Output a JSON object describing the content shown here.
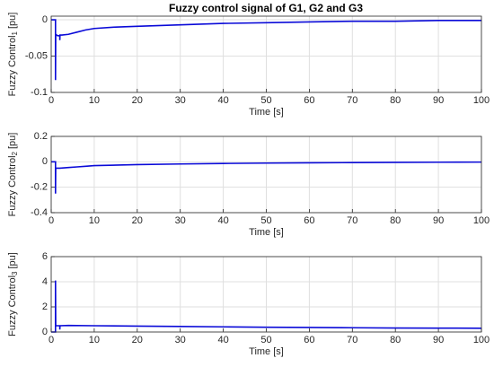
{
  "chart_data": [
    {
      "type": "line",
      "title": "Fuzzy control signal of G1, G2 and G3",
      "xlabel": "Time [s]",
      "ylabel": [
        "Fuzzy Control",
        "1",
        "[pu]"
      ],
      "color": "#0a0ad8",
      "grid": true,
      "xlim": [
        0,
        100
      ],
      "xticks": [
        0,
        10,
        20,
        30,
        40,
        50,
        60,
        70,
        80,
        90,
        100
      ],
      "ylim": [
        -0.1,
        0.005
      ],
      "yticks": [
        -0.1,
        -0.05,
        0
      ],
      "x": [
        0,
        1,
        1,
        1.05,
        1.5,
        2,
        2,
        2.05,
        2.5,
        4,
        6,
        8,
        10,
        15,
        20,
        30,
        40,
        50,
        60,
        70,
        80,
        90,
        100
      ],
      "values": [
        0,
        0,
        -0.083,
        -0.02,
        -0.022,
        -0.022,
        -0.028,
        -0.021,
        -0.021,
        -0.02,
        -0.017,
        -0.014,
        -0.012,
        -0.01,
        -0.009,
        -0.007,
        -0.005,
        -0.004,
        -0.003,
        -0.002,
        -0.002,
        -0.001,
        -0.001
      ]
    },
    {
      "type": "line",
      "xlabel": "Time [s]",
      "ylabel": [
        "Fuzzy Control",
        "2",
        "[pu]"
      ],
      "color": "#0a0ad8",
      "grid": true,
      "xlim": [
        0,
        100
      ],
      "xticks": [
        0,
        10,
        20,
        30,
        40,
        50,
        60,
        70,
        80,
        90,
        100
      ],
      "ylim": [
        -0.4,
        0.2
      ],
      "yticks": [
        -0.4,
        -0.2,
        0,
        0.2
      ],
      "x": [
        0,
        1,
        1,
        1.05,
        2,
        4,
        6,
        8,
        10,
        20,
        30,
        40,
        50,
        60,
        70,
        80,
        90,
        100
      ],
      "values": [
        0,
        0,
        -0.25,
        -0.05,
        -0.05,
        -0.045,
        -0.04,
        -0.035,
        -0.03,
        -0.022,
        -0.017,
        -0.013,
        -0.01,
        -0.008,
        -0.006,
        -0.004,
        -0.003,
        -0.002
      ]
    },
    {
      "type": "line",
      "xlabel": "Time [s]",
      "ylabel": [
        "Fuzzy Control",
        "3",
        "[pu]"
      ],
      "color": "#0a0ad8",
      "grid": true,
      "xlim": [
        0,
        100
      ],
      "xticks": [
        0,
        10,
        20,
        30,
        40,
        50,
        60,
        70,
        80,
        90,
        100
      ],
      "ylim": [
        0,
        6
      ],
      "yticks": [
        0,
        2,
        4,
        6
      ],
      "x": [
        0,
        1,
        1,
        1.05,
        2,
        2,
        2.05,
        4,
        10,
        20,
        30,
        40,
        50,
        60,
        70,
        80,
        90,
        100
      ],
      "values": [
        0,
        0,
        4.1,
        0.5,
        0.5,
        0.2,
        0.5,
        0.52,
        0.5,
        0.47,
        0.44,
        0.41,
        0.38,
        0.36,
        0.34,
        0.32,
        0.31,
        0.3
      ]
    }
  ]
}
